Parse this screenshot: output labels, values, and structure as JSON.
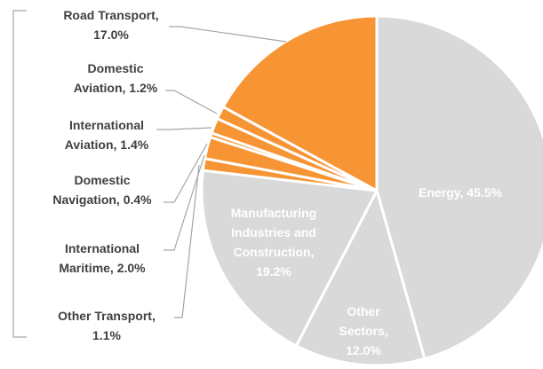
{
  "chart_data": {
    "type": "pie",
    "categories": [
      "Energy, 45.5%",
      "Other Sectors, 12.0%",
      "Manufacturing Industries and Construction, 19.2%",
      "Other Transport, 1.1%",
      "International Maritime, 2.0%",
      "Domestic Navigation, 0.4%",
      "International Aviation, 1.4%",
      "Domestic Aviation, 1.2%",
      "Road Transport, 17.0%"
    ],
    "values": [
      45.5,
      12.0,
      19.2,
      1.1,
      2.0,
      0.4,
      1.4,
      1.2,
      17.0
    ],
    "colors": [
      "#d9d9d9",
      "#d9d9d9",
      "#d9d9d9",
      "#f79433",
      "#f79433",
      "#f79433",
      "#f79433",
      "#f79433",
      "#f79433"
    ]
  }
}
